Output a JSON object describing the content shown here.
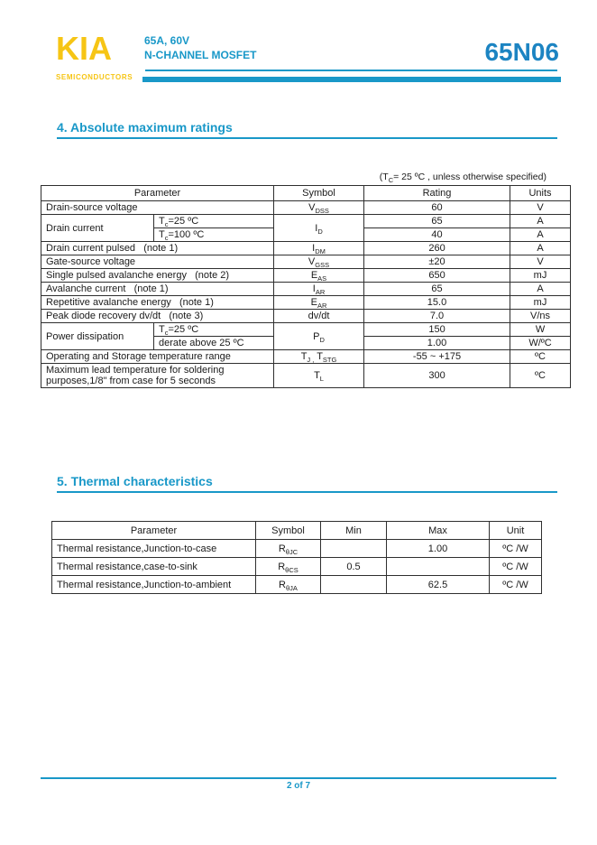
{
  "colors": {
    "accent": "#1998C8",
    "part_number": "#1C84C2",
    "logo_yellow": "#F6C515",
    "table_border": "#2f2f2f",
    "text": "#1a1a1a"
  },
  "header": {
    "logo_text": "KIA",
    "logo_subtext": "SEMICONDUCTORS",
    "device_line1": "65A, 60V",
    "device_line2": "N-CHANNEL MOSFET",
    "part_number": "65N06"
  },
  "section4": {
    "title": "4. Absolute maximum ratings",
    "condition": "(T_{C}= 25 ºC , unless otherwise specified)",
    "table": {
      "headers": [
        {
          "t": "Parameter",
          "cs": 2
        },
        {
          "t": "Symbol"
        },
        {
          "t": "Rating"
        },
        {
          "t": "Units"
        }
      ],
      "rows": [
        [
          {
            "t": "Drain-source voltage",
            "cs": 2,
            "c": "l"
          },
          {
            "t": "V_{DSS}"
          },
          {
            "t": "60"
          },
          {
            "t": "V"
          }
        ],
        [
          {
            "t": "Drain current",
            "rs": 2,
            "c": "l"
          },
          {
            "t": "T_{c}=25 ºC",
            "c": "l"
          },
          {
            "t": "I_{D}",
            "rs": 2
          },
          {
            "t": "65"
          },
          {
            "t": "A"
          }
        ],
        [
          {
            "t": "T_{c}=100 ºC",
            "c": "l"
          },
          {
            "t": "40"
          },
          {
            "t": "A"
          }
        ],
        [
          {
            "t": "Drain current pulsed   (note 1)",
            "cs": 2,
            "c": "l"
          },
          {
            "t": "I_{DM}"
          },
          {
            "t": "260"
          },
          {
            "t": "A"
          }
        ],
        [
          {
            "t": "Gate-source voltage",
            "cs": 2,
            "c": "l"
          },
          {
            "t": "V_{GSS}"
          },
          {
            "t": "±20"
          },
          {
            "t": "V"
          }
        ],
        [
          {
            "t": "Single pulsed avalanche energy   (note 2)",
            "cs": 2,
            "c": "l"
          },
          {
            "t": "E_{AS}"
          },
          {
            "t": "650"
          },
          {
            "t": "mJ"
          }
        ],
        [
          {
            "t": "Avalanche current   (note 1)",
            "cs": 2,
            "c": "l"
          },
          {
            "t": "I_{AR}"
          },
          {
            "t": "65"
          },
          {
            "t": "A"
          }
        ],
        [
          {
            "t": "Repetitive avalanche energy   (note 1)",
            "cs": 2,
            "c": "l"
          },
          {
            "t": "E_{AR}"
          },
          {
            "t": "15.0"
          },
          {
            "t": "mJ"
          }
        ],
        [
          {
            "t": "Peak diode recovery dv/dt   (note 3)",
            "cs": 2,
            "c": "l"
          },
          {
            "t": "dv/dt"
          },
          {
            "t": "7.0"
          },
          {
            "t": "V/ns"
          }
        ],
        [
          {
            "t": "Power dissipation",
            "rs": 2,
            "c": "l"
          },
          {
            "t": "T_{c}=25 ºC",
            "c": "l"
          },
          {
            "t": "P_{D}",
            "rs": 2
          },
          {
            "t": "150"
          },
          {
            "t": "W"
          }
        ],
        [
          {
            "t": "derate above 25 ºC",
            "c": "l"
          },
          {
            "t": "1.00"
          },
          {
            "t": "W/ºC"
          }
        ],
        [
          {
            "t": "Operating and Storage temperature range",
            "cs": 2,
            "c": "l"
          },
          {
            "t": "T_{J ,} T_{STG}"
          },
          {
            "t": "-55 ~ +175"
          },
          {
            "t": "ºC"
          }
        ],
        [
          {
            "t": "Maximum lead temperature for soldering purposes,1/8\" from case for 5 seconds",
            "cs": 2,
            "c": "l"
          },
          {
            "t": "T_{L}"
          },
          {
            "t": "300"
          },
          {
            "t": "ºC"
          }
        ]
      ]
    }
  },
  "section5": {
    "title": "5. Thermal characteristics",
    "table": {
      "headers": [
        {
          "t": "Parameter"
        },
        {
          "t": "Symbol"
        },
        {
          "t": "Min"
        },
        {
          "t": "Max"
        },
        {
          "t": "Unit"
        }
      ],
      "rows": [
        [
          {
            "t": "Thermal resistance,Junction-to-case",
            "c": "l"
          },
          {
            "t": "R_{θJC}"
          },
          {
            "t": ""
          },
          {
            "t": "1.00"
          },
          {
            "t": "ºC /W"
          }
        ],
        [
          {
            "t": "Thermal resistance,case-to-sink",
            "c": "l"
          },
          {
            "t": "R_{θCS}"
          },
          {
            "t": "0.5"
          },
          {
            "t": ""
          },
          {
            "t": "ºC /W"
          }
        ],
        [
          {
            "t": "Thermal resistance,Junction-to-ambient",
            "c": "l"
          },
          {
            "t": "R_{θJA}"
          },
          {
            "t": ""
          },
          {
            "t": "62.5"
          },
          {
            "t": "ºC /W"
          }
        ]
      ]
    }
  },
  "footer": {
    "page_label": "2 of 7"
  }
}
